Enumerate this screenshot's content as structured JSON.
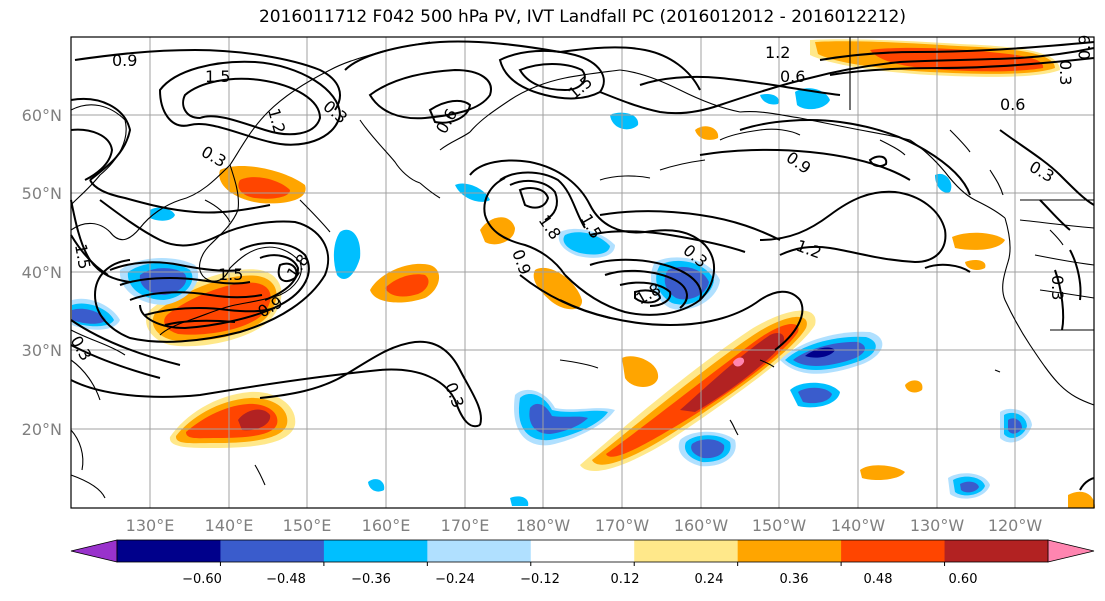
{
  "title": "2016011712 F042 500 hPa PV, IVT Landfall PC (2016012012 - 2016012212)",
  "map": {
    "lat_labels": [
      "60°N",
      "50°N",
      "40°N",
      "30°N",
      "20°N"
    ],
    "lon_labels": [
      "130°E",
      "140°E",
      "150°E",
      "160°E",
      "170°E",
      "180°W",
      "170°W",
      "160°W",
      "150°W",
      "140°W",
      "130°W",
      "120°W"
    ],
    "contour_labels": [
      "0.9",
      "1.5",
      "0.3",
      "0.6",
      "1.5",
      "1.2",
      "0.6",
      "0.3",
      "0.9",
      "1.8",
      "1.5",
      "0.3",
      "1.2",
      "0.9",
      "1.8",
      "0.3",
      "1.8",
      "1.5",
      "0.3",
      "0.9",
      "0.3",
      "1.5",
      "1.2",
      "0.9",
      "0.3",
      "0.6",
      "0.3"
    ]
  },
  "colorbar": {
    "ticks": [
      "−0.60",
      "−0.48",
      "−0.36",
      "−0.24",
      "−0.12",
      "0.12",
      "0.24",
      "0.36",
      "0.48",
      "0.60"
    ],
    "colors": [
      "#9932cc",
      "#00008b",
      "#3a5ccc",
      "#00bfff",
      "#b0e0ff",
      "#ffffff",
      "#ffe88a",
      "#ffa500",
      "#ff4500",
      "#b22222",
      "#ff85b0"
    ]
  },
  "colors": {
    "coast": "#000000",
    "grid": "#a0a0a0",
    "contour": "#000000"
  }
}
